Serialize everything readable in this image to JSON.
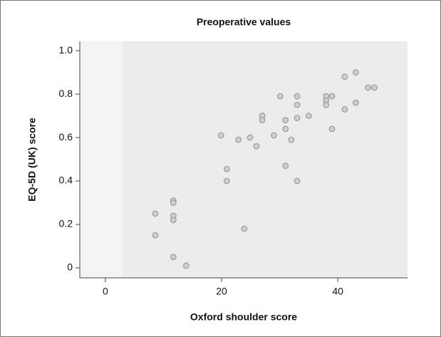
{
  "chart_data": {
    "type": "scatter",
    "title": "Preoperative values",
    "xlabel": "Oxford shoulder score",
    "ylabel": "EQ-5D (UK) score",
    "color": "#9a9a9a",
    "xlim": [
      -4.4,
      52
    ],
    "ylim": [
      -0.046,
      1.043
    ],
    "xticks": [
      0,
      20,
      40
    ],
    "yticks": [
      0,
      {
        "value": 0.2,
        "label": "0.2"
      },
      {
        "value": 0.4,
        "label": "0.4"
      },
      {
        "value": 0.6,
        "label": "0.6"
      },
      {
        "value": 0.8,
        "label": "0.8"
      },
      {
        "value": 1.0,
        "label": "1.0"
      }
    ],
    "x": [
      8.6,
      8.6,
      11.7,
      11.7,
      11.7,
      11.7,
      11.7,
      13.9,
      19.9,
      20.9,
      20.9,
      22.9,
      23.9,
      24.9,
      26.0,
      27.0,
      27.0,
      29.0,
      30.1,
      31.0,
      31.0,
      31.0,
      32.0,
      33.0,
      33.0,
      33.0,
      33.0,
      35.0,
      38.0,
      38.0,
      38.0,
      39.0,
      39.0,
      41.2,
      41.2,
      43.1,
      43.1,
      45.2,
      46.3
    ],
    "y": [
      0.25,
      0.15,
      0.31,
      0.3,
      0.24,
      0.22,
      0.05,
      0.01,
      0.61,
      0.455,
      0.4,
      0.59,
      0.18,
      0.6,
      0.56,
      0.7,
      0.68,
      0.61,
      0.79,
      0.68,
      0.64,
      0.47,
      0.59,
      0.79,
      0.75,
      0.69,
      0.4,
      0.7,
      0.79,
      0.77,
      0.75,
      0.79,
      0.64,
      0.88,
      0.73,
      0.9,
      0.76,
      0.83,
      0.83
    ]
  }
}
